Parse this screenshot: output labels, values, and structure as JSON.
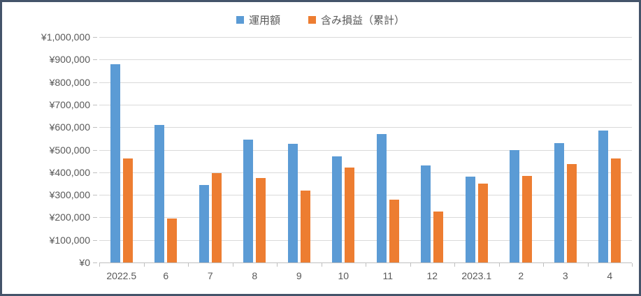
{
  "chart": {
    "frame_border_color": "#44546A",
    "background_color": "#FFFFFF",
    "gridline_color": "#D9D9D9",
    "axis_line_color": "#BFBFBF",
    "axis_text_color": "#595959"
  },
  "chart_data": {
    "type": "bar",
    "title": "",
    "xlabel": "",
    "ylabel": "",
    "categories": [
      "2022.5",
      "6",
      "7",
      "8",
      "9",
      "10",
      "11",
      "12",
      "2023.1",
      "2",
      "3",
      "4"
    ],
    "series": [
      {
        "name": "運用額",
        "color": "#5B9BD5",
        "values": [
          880000,
          610000,
          345000,
          545000,
          525000,
          470000,
          570000,
          430000,
          380000,
          500000,
          530000,
          585000
        ]
      },
      {
        "name": "含み損益（累計）",
        "color": "#ED7D31",
        "values": [
          460000,
          195000,
          395000,
          375000,
          320000,
          420000,
          280000,
          225000,
          350000,
          385000,
          435000,
          460000
        ]
      }
    ],
    "ylim": [
      0,
      1000000
    ],
    "y_tick_interval": 100000,
    "y_tick_labels": [
      "¥0",
      "¥100,000",
      "¥200,000",
      "¥300,000",
      "¥400,000",
      "¥500,000",
      "¥600,000",
      "¥700,000",
      "¥800,000",
      "¥900,000",
      "¥1,000,000"
    ],
    "y_tick_prefix": "¥",
    "grid": true,
    "legend_position": "top"
  }
}
